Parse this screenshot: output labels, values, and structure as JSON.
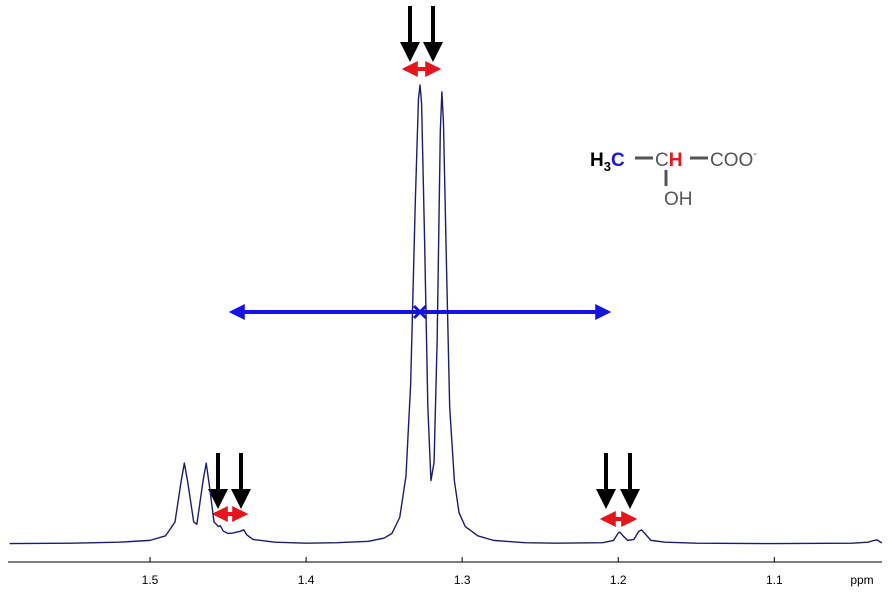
{
  "chart_data": {
    "type": "line",
    "x": [
      1.59,
      1.55,
      1.52,
      1.5,
      1.49,
      1.484,
      1.48,
      1.478,
      1.476,
      1.472,
      1.47,
      1.466,
      1.464,
      1.462,
      1.459,
      1.456,
      1.455,
      1.453,
      1.45,
      1.447,
      1.442,
      1.44,
      1.438,
      1.434,
      1.42,
      1.4,
      1.38,
      1.36,
      1.35,
      1.345,
      1.34,
      1.336,
      1.333,
      1.33,
      1.328,
      1.327,
      1.326,
      1.324,
      1.322,
      1.32,
      1.318,
      1.316,
      1.314,
      1.313,
      1.312,
      1.31,
      1.308,
      1.305,
      1.302,
      1.298,
      1.29,
      1.28,
      1.26,
      1.24,
      1.21,
      1.203,
      1.2,
      1.199,
      1.197,
      1.194,
      1.19,
      1.187,
      1.185,
      1.183,
      1.179,
      1.17,
      1.15,
      1.1,
      1.05,
      1.04,
      1.036,
      1.034,
      1.032,
      1.031
    ],
    "values": [
      0.3,
      0.4,
      0.6,
      1.0,
      2.0,
      5,
      14,
      17.8,
      14,
      5,
      4.5,
      14,
      17.8,
      13,
      5,
      4,
      4.2,
      3,
      2.5,
      2.6,
      3,
      3.3,
      2.2,
      1.2,
      0.6,
      0.4,
      0.5,
      0.8,
      1.5,
      2.5,
      6,
      15,
      35,
      75,
      97,
      100,
      96,
      65,
      30,
      14,
      18,
      45,
      90,
      98.5,
      92,
      60,
      30,
      14,
      7,
      4,
      2,
      1.0,
      0.5,
      0.4,
      0.5,
      1.0,
      2.6,
      2.8,
      2.0,
      1.0,
      1.2,
      2.9,
      3.3,
      2.5,
      1.0,
      0.6,
      0.4,
      0.3,
      0.4,
      0.6,
      1.0,
      1.1,
      0.6,
      0.5
    ],
    "color": "#1c1c6e",
    "xlim": [
      1.591,
      1.031
    ],
    "ylim": [
      -3.7,
      105
    ],
    "xticks": [
      1.5,
      1.4,
      1.3,
      1.2,
      1.1
    ],
    "xlabel": "ppm"
  },
  "structure": {
    "methyl_h": "H",
    "methyl_sub": "3",
    "methyl_c": "C",
    "ch_c": "C",
    "ch_h": "H",
    "carboxylate": "COO",
    "charge": "-",
    "hydroxyl": "OH"
  }
}
